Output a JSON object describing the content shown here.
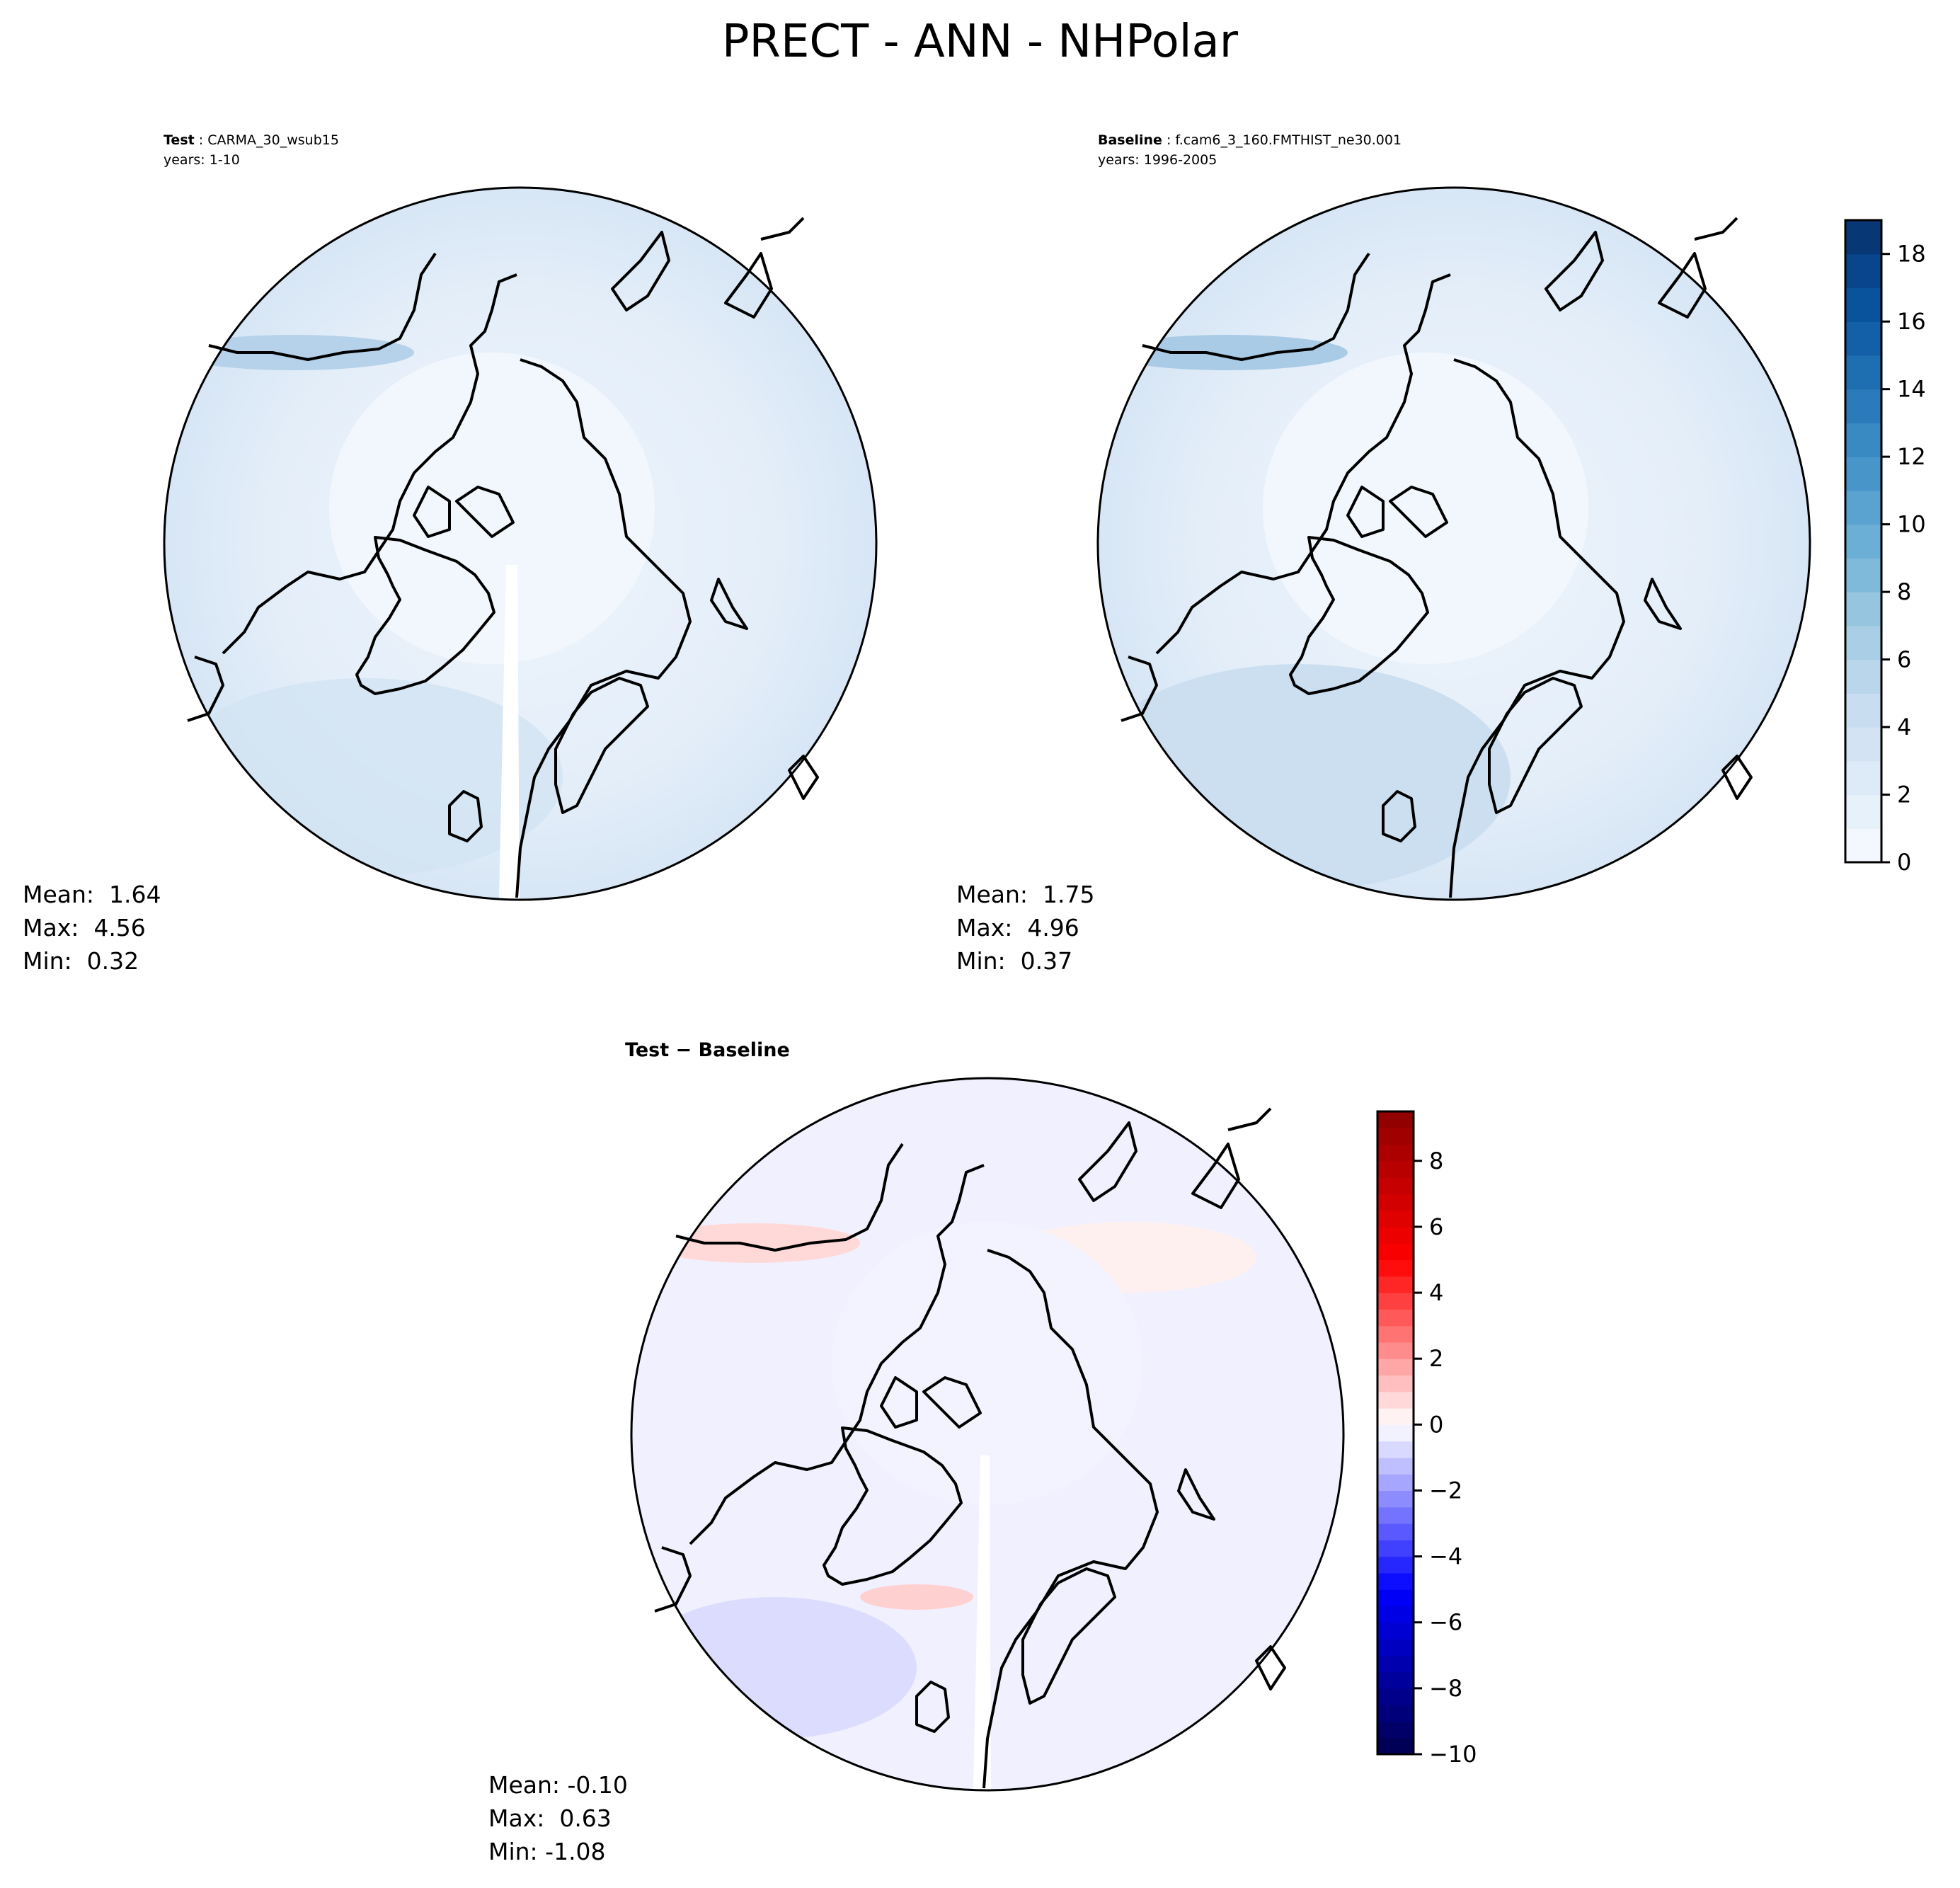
{
  "title": "PRECT - ANN - NHPolar",
  "panels": {
    "test": {
      "label": "Test",
      "case": "CARMA_30_wsub15",
      "years": "years: 1-10",
      "mean": "Mean:  1.64",
      "max": "Max:  4.56",
      "min": "Min:  0.32"
    },
    "baseline": {
      "label": "Baseline",
      "case": "f.cam6_3_160.FMTHIST_ne30.001",
      "years": "years: 1996-2005",
      "mean": "Mean:  1.75",
      "max": "Max:  4.96",
      "min": "Min:  0.37"
    },
    "diff": {
      "label": "Test − Baseline",
      "mean": "Mean: -0.10",
      "max": "Max:  0.63",
      "min": "Min: -1.08"
    }
  },
  "chart_data": [
    {
      "type": "heatmap",
      "projection": "north-polar-stereographic",
      "name": "Test",
      "colormap": "Blues",
      "vmin": 0,
      "vmax": 19,
      "level_step": 1,
      "mean": 1.64,
      "max": 4.56,
      "min": 0.32
    },
    {
      "type": "heatmap",
      "projection": "north-polar-stereographic",
      "name": "Baseline",
      "colormap": "Blues",
      "vmin": 0,
      "vmax": 19,
      "level_step": 1,
      "mean": 1.75,
      "max": 4.96,
      "min": 0.37,
      "colorbar": {
        "ticks": [
          "0",
          "2",
          "4",
          "6",
          "8",
          "10",
          "12",
          "14",
          "16",
          "18"
        ],
        "range": [
          0,
          19
        ]
      }
    },
    {
      "type": "heatmap",
      "projection": "north-polar-stereographic",
      "name": "Test − Baseline",
      "colormap": "seismic",
      "vmin": -10,
      "vmax": 9.5,
      "level_step": 0.5,
      "mean": -0.1,
      "max": 0.63,
      "min": -1.08,
      "colorbar": {
        "ticks": [
          "−10",
          "−8",
          "−6",
          "−4",
          "−2",
          "0",
          "2",
          "4",
          "6",
          "8"
        ],
        "range": [
          -10,
          9.5
        ]
      }
    }
  ]
}
